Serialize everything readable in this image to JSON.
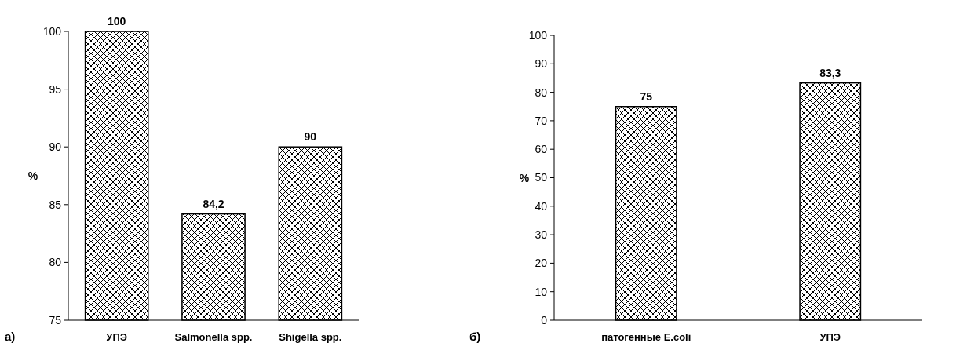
{
  "chart_data": [
    {
      "type": "bar",
      "categories": [
        "УПЭ",
        "Salmonella spp.",
        "Shigella spp."
      ],
      "values": [
        100,
        84.2,
        90
      ],
      "value_labels": [
        "100",
        "84,2",
        "90"
      ],
      "color": "#000000",
      "ylabel": "%",
      "ylim": [
        75,
        100
      ],
      "yticks": [
        75,
        80,
        85,
        90,
        95,
        100
      ],
      "grid": false,
      "annotations": [
        "а)"
      ]
    },
    {
      "type": "bar",
      "categories": [
        "патогенные E.coli",
        "УПЭ"
      ],
      "values": [
        75,
        83.3
      ],
      "value_labels": [
        "75",
        "83,3"
      ],
      "color": "#000000",
      "ylabel": "%",
      "ylim": [
        0,
        100
      ],
      "yticks": [
        0,
        10,
        20,
        30,
        40,
        50,
        60,
        70,
        80,
        90,
        100
      ],
      "grid": false,
      "annotations": [
        "б)"
      ]
    }
  ]
}
